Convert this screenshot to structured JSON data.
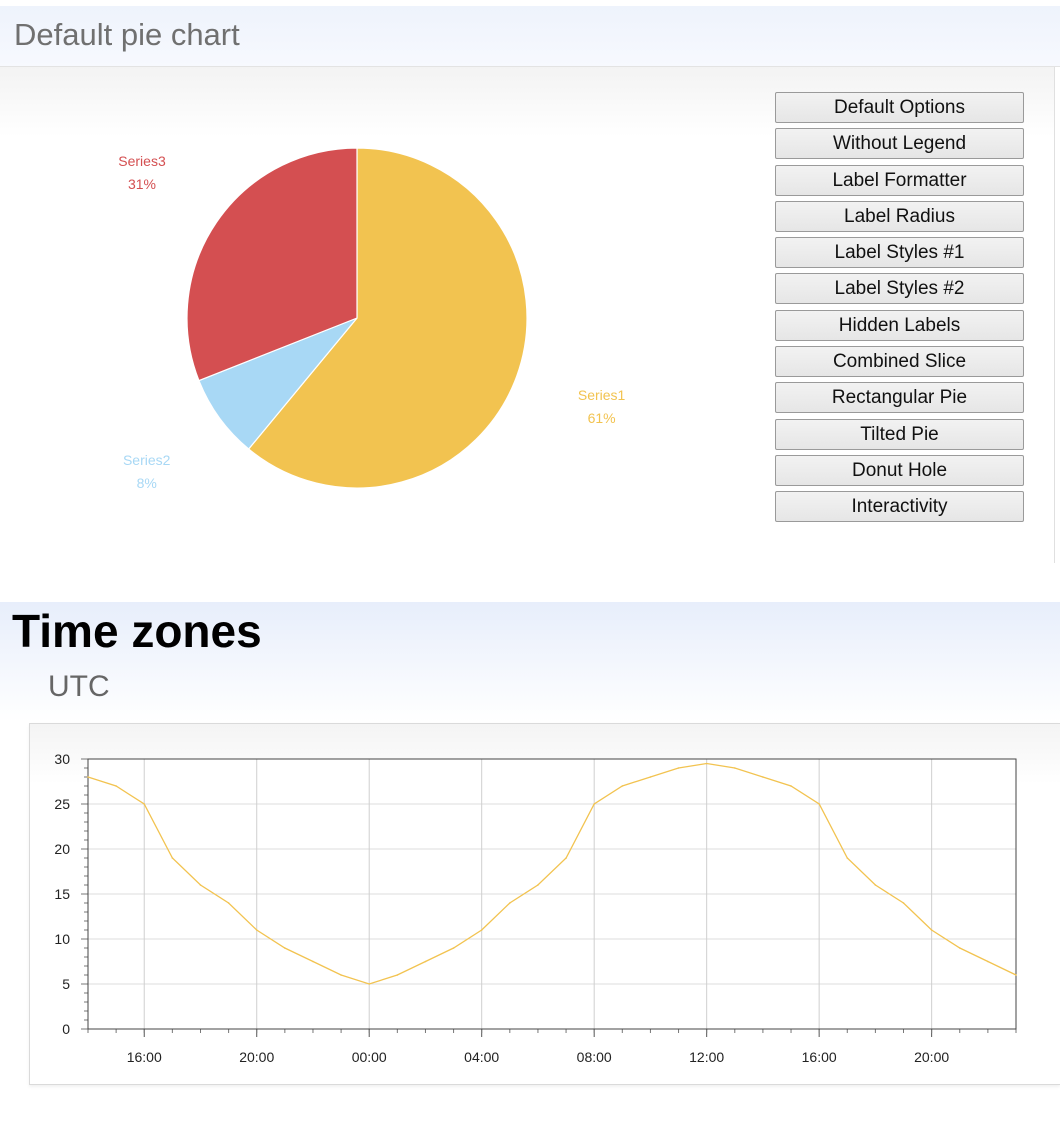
{
  "pie_section": {
    "title": "Default pie chart"
  },
  "options": {
    "buttons": [
      "Default Options",
      "Without Legend",
      "Label Formatter",
      "Label Radius",
      "Label Styles #1",
      "Label Styles #2",
      "Hidden Labels",
      "Combined Slice",
      "Rectangular Pie",
      "Tilted Pie",
      "Donut Hole",
      "Interactivity"
    ]
  },
  "tz_section": {
    "title": "Time zones",
    "subtitle": "UTC"
  },
  "chart_data": [
    {
      "type": "pie",
      "title": "Default pie chart",
      "series": [
        {
          "name": "Series1",
          "value": 61,
          "label": "61%",
          "color": "#f2c350"
        },
        {
          "name": "Series2",
          "value": 8,
          "label": "8%",
          "color": "#a8d8f5"
        },
        {
          "name": "Series3",
          "value": 31,
          "label": "31%",
          "color": "#d44f51"
        }
      ]
    },
    {
      "type": "line",
      "title": "UTC",
      "x_tick_labels": [
        "16:00",
        "20:00",
        "00:00",
        "04:00",
        "08:00",
        "12:00",
        "16:00",
        "20:00"
      ],
      "y_tick_labels": [
        "0",
        "5",
        "10",
        "15",
        "20",
        "25",
        "30"
      ],
      "ylim": [
        0,
        30
      ],
      "xlim_hours": [
        14,
        47
      ],
      "grid": true,
      "series": [
        {
          "color": "#f2c350",
          "x_hours": [
            14,
            15,
            16,
            17,
            18,
            19,
            20,
            21,
            22,
            23,
            24,
            25,
            26,
            27,
            28,
            29,
            30,
            31,
            32,
            33,
            34,
            35,
            36,
            37,
            38,
            39,
            40,
            41,
            42,
            43,
            44,
            45,
            46,
            47
          ],
          "values": [
            28,
            27,
            25,
            19,
            16,
            14,
            11,
            9,
            7.5,
            6,
            5,
            6,
            7.5,
            9,
            11,
            14,
            16,
            19,
            25,
            27,
            28,
            29,
            29.5,
            29,
            28,
            27,
            25,
            19,
            16,
            14,
            11,
            9,
            7.5,
            6
          ]
        }
      ]
    }
  ]
}
